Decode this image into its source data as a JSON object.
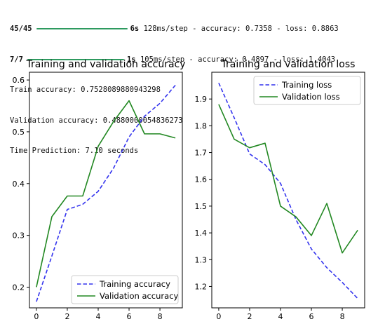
{
  "console": {
    "lines": [
      {
        "step": "45/45",
        "progress": 1.0,
        "time": "6s",
        "rest": "128ms/step - accuracy: 0.7358 - loss: 0.8863"
      },
      {
        "step": "7/7",
        "progress": 1.0,
        "time": "1s",
        "rest": "105ms/step - accuracy: 0.4897 - loss: 1.4043"
      }
    ],
    "train_accuracy": "Train accuracy: 0.7528089880943298",
    "val_accuracy": "Validation accuracy: 0.4880000054836273",
    "time_prediction": "Time Prediction: 7.10 seconds",
    "progress_color": "#2e9a5f"
  },
  "chart_data": [
    {
      "type": "line",
      "title": "Training and validation accuracy",
      "xlabel": "",
      "ylabel": "",
      "x": [
        0,
        1,
        2,
        3,
        4,
        5,
        6,
        7,
        8,
        9
      ],
      "xticks": [
        0,
        2,
        4,
        6,
        8
      ],
      "yticks": [
        0.2,
        0.3,
        0.4,
        0.5,
        0.6
      ],
      "ylim": [
        0.16,
        0.615
      ],
      "xlim": [
        -0.45,
        9.45
      ],
      "grid": false,
      "legend_position": "lower-right",
      "series": [
        {
          "name": "Training accuracy",
          "color": "#3333ee",
          "style": "dashed",
          "values": [
            0.172,
            0.26,
            0.35,
            0.36,
            0.385,
            0.43,
            0.49,
            0.53,
            0.555,
            0.59
          ]
        },
        {
          "name": "Validation accuracy",
          "color": "#228822",
          "style": "solid",
          "values": [
            0.2,
            0.336,
            0.376,
            0.376,
            0.472,
            0.52,
            0.56,
            0.496,
            0.496,
            0.488
          ]
        }
      ]
    },
    {
      "type": "line",
      "title": "Training and validation loss",
      "xlabel": "",
      "ylabel": "",
      "x": [
        0,
        1,
        2,
        3,
        4,
        5,
        6,
        7,
        8,
        9
      ],
      "xticks": [
        0,
        2,
        4,
        6,
        8
      ],
      "yticks": [
        1.2,
        1.3,
        1.4,
        1.5,
        1.6,
        1.7,
        1.8,
        1.9
      ],
      "ylim": [
        1.12,
        2.0
      ],
      "xlim": [
        -0.45,
        9.45
      ],
      "grid": false,
      "legend_position": "upper-right",
      "series": [
        {
          "name": "Training loss",
          "color": "#3333ee",
          "style": "dashed",
          "values": [
            1.96,
            1.83,
            1.695,
            1.655,
            1.585,
            1.45,
            1.34,
            1.27,
            1.215,
            1.155
          ]
        },
        {
          "name": "Validation loss",
          "color": "#228822",
          "style": "solid",
          "values": [
            1.88,
            1.75,
            1.718,
            1.735,
            1.5,
            1.46,
            1.39,
            1.51,
            1.325,
            1.41
          ]
        }
      ]
    }
  ]
}
